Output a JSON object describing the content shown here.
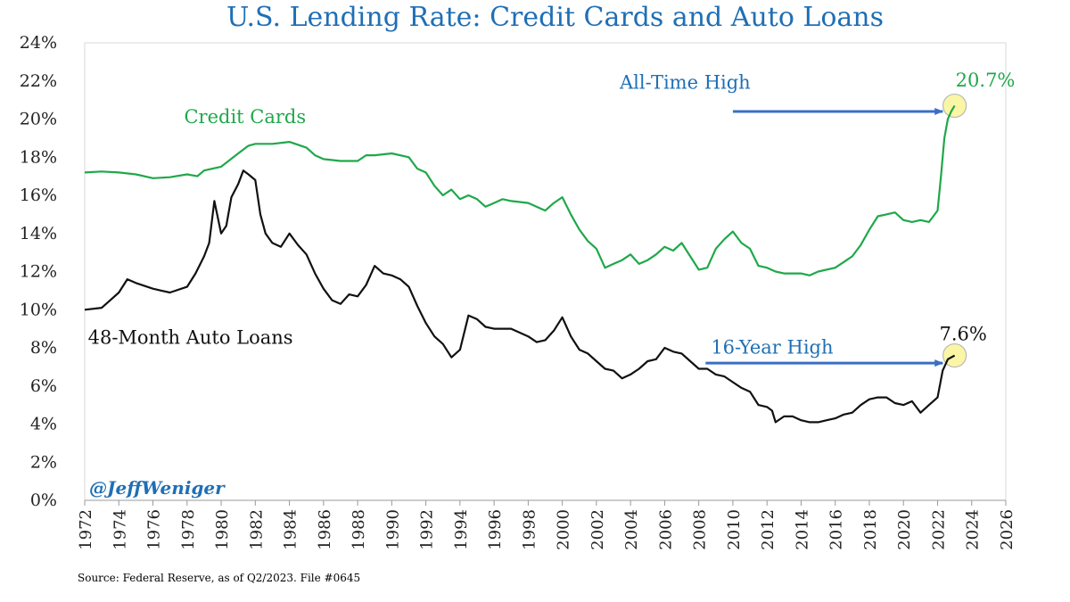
{
  "chart_data": {
    "type": "line",
    "title": "U.S. Lending Rate: Credit Cards and Auto Loans",
    "xlim": [
      1972,
      2026
    ],
    "ylim": [
      0,
      24
    ],
    "x_ticks": [
      1972,
      1974,
      1976,
      1978,
      1980,
      1982,
      1984,
      1986,
      1988,
      1990,
      1992,
      1994,
      1996,
      1998,
      2000,
      2002,
      2004,
      2006,
      2008,
      2010,
      2012,
      2014,
      2016,
      2018,
      2020,
      2022,
      2024,
      2026
    ],
    "y_ticks": [
      0,
      2,
      4,
      6,
      8,
      10,
      12,
      14,
      16,
      18,
      20,
      22,
      24
    ],
    "y_tick_labels": [
      "0%",
      "2%",
      "4%",
      "6%",
      "8%",
      "10%",
      "12%",
      "14%",
      "16%",
      "18%",
      "20%",
      "22%",
      "24%"
    ],
    "grid": false,
    "series": [
      {
        "name": "Credit Cards",
        "color": "#1fa84a",
        "points": [
          [
            1972,
            17.2
          ],
          [
            1973,
            17.25
          ],
          [
            1974,
            17.2
          ],
          [
            1975,
            17.1
          ],
          [
            1976,
            16.9
          ],
          [
            1977,
            16.95
          ],
          [
            1978,
            17.1
          ],
          [
            1978.6,
            17.0
          ],
          [
            1979,
            17.3
          ],
          [
            1980,
            17.5
          ],
          [
            1981,
            18.2
          ],
          [
            1981.6,
            18.6
          ],
          [
            1982,
            18.7
          ],
          [
            1983,
            18.7
          ],
          [
            1984,
            18.8
          ],
          [
            1985,
            18.5
          ],
          [
            1985.5,
            18.1
          ],
          [
            1986,
            17.9
          ],
          [
            1987,
            17.8
          ],
          [
            1988,
            17.8
          ],
          [
            1988.5,
            18.1
          ],
          [
            1989,
            18.1
          ],
          [
            1990,
            18.2
          ],
          [
            1991,
            18.0
          ],
          [
            1991.5,
            17.4
          ],
          [
            1992,
            17.2
          ],
          [
            1992.5,
            16.5
          ],
          [
            1993,
            16.0
          ],
          [
            1993.5,
            16.3
          ],
          [
            1994,
            15.8
          ],
          [
            1994.5,
            16.0
          ],
          [
            1995,
            15.8
          ],
          [
            1995.5,
            15.4
          ],
          [
            1996,
            15.6
          ],
          [
            1996.5,
            15.8
          ],
          [
            1997,
            15.7
          ],
          [
            1998,
            15.6
          ],
          [
            1999,
            15.2
          ],
          [
            1999.5,
            15.6
          ],
          [
            2000,
            15.9
          ],
          [
            2000.5,
            15.0
          ],
          [
            2001,
            14.2
          ],
          [
            2001.5,
            13.6
          ],
          [
            2002,
            13.2
          ],
          [
            2002.5,
            12.2
          ],
          [
            2003,
            12.4
          ],
          [
            2003.5,
            12.6
          ],
          [
            2004,
            12.9
          ],
          [
            2004.5,
            12.4
          ],
          [
            2005,
            12.6
          ],
          [
            2005.5,
            12.9
          ],
          [
            2006,
            13.3
          ],
          [
            2006.5,
            13.1
          ],
          [
            2007,
            13.5
          ],
          [
            2007.5,
            12.8
          ],
          [
            2008,
            12.1
          ],
          [
            2008.5,
            12.2
          ],
          [
            2009,
            13.2
          ],
          [
            2009.5,
            13.7
          ],
          [
            2010,
            14.1
          ],
          [
            2010.5,
            13.5
          ],
          [
            2011,
            13.2
          ],
          [
            2011.5,
            12.3
          ],
          [
            2012,
            12.2
          ],
          [
            2012.5,
            12.0
          ],
          [
            2013,
            11.9
          ],
          [
            2014,
            11.9
          ],
          [
            2014.5,
            11.8
          ],
          [
            2015,
            12.0
          ],
          [
            2016,
            12.2
          ],
          [
            2016.5,
            12.5
          ],
          [
            2017,
            12.8
          ],
          [
            2017.5,
            13.4
          ],
          [
            2018,
            14.2
          ],
          [
            2018.5,
            14.9
          ],
          [
            2019,
            15.0
          ],
          [
            2019.5,
            15.1
          ],
          [
            2020,
            14.7
          ],
          [
            2020.5,
            14.6
          ],
          [
            2021,
            14.7
          ],
          [
            2021.5,
            14.6
          ],
          [
            2022,
            15.2
          ],
          [
            2022.2,
            17.0
          ],
          [
            2022.4,
            19.0
          ],
          [
            2022.6,
            20.0
          ],
          [
            2022.8,
            20.4
          ],
          [
            2023,
            20.7
          ]
        ]
      },
      {
        "name": "48-Month Auto Loans",
        "color": "#111111",
        "points": [
          [
            1972,
            10.0
          ],
          [
            1973,
            10.1
          ],
          [
            1973.5,
            10.5
          ],
          [
            1974,
            10.9
          ],
          [
            1974.5,
            11.6
          ],
          [
            1975,
            11.4
          ],
          [
            1976,
            11.1
          ],
          [
            1976.5,
            11.0
          ],
          [
            1977,
            10.9
          ],
          [
            1978,
            11.2
          ],
          [
            1978.5,
            11.9
          ],
          [
            1979,
            12.8
          ],
          [
            1979.3,
            13.5
          ],
          [
            1979.6,
            15.7
          ],
          [
            1980,
            14.0
          ],
          [
            1980.3,
            14.4
          ],
          [
            1980.6,
            15.9
          ],
          [
            1981,
            16.6
          ],
          [
            1981.3,
            17.3
          ],
          [
            1981.6,
            17.1
          ],
          [
            1982,
            16.8
          ],
          [
            1982.3,
            15.0
          ],
          [
            1982.6,
            14.0
          ],
          [
            1983,
            13.5
          ],
          [
            1983.5,
            13.3
          ],
          [
            1984,
            14.0
          ],
          [
            1984.5,
            13.4
          ],
          [
            1985,
            12.9
          ],
          [
            1985.5,
            11.9
          ],
          [
            1986,
            11.1
          ],
          [
            1986.5,
            10.5
          ],
          [
            1987,
            10.3
          ],
          [
            1987.5,
            10.8
          ],
          [
            1988,
            10.7
          ],
          [
            1988.5,
            11.3
          ],
          [
            1989,
            12.3
          ],
          [
            1989.5,
            11.9
          ],
          [
            1990,
            11.8
          ],
          [
            1990.5,
            11.6
          ],
          [
            1991,
            11.2
          ],
          [
            1991.5,
            10.2
          ],
          [
            1992,
            9.3
          ],
          [
            1992.5,
            8.6
          ],
          [
            1993,
            8.2
          ],
          [
            1993.5,
            7.5
          ],
          [
            1994,
            7.9
          ],
          [
            1994.5,
            9.7
          ],
          [
            1995,
            9.5
          ],
          [
            1995.5,
            9.1
          ],
          [
            1996,
            9.0
          ],
          [
            1997,
            9.0
          ],
          [
            1998,
            8.6
          ],
          [
            1998.5,
            8.3
          ],
          [
            1999,
            8.4
          ],
          [
            1999.5,
            8.9
          ],
          [
            2000,
            9.6
          ],
          [
            2000.5,
            8.6
          ],
          [
            2001,
            7.9
          ],
          [
            2001.5,
            7.7
          ],
          [
            2002,
            7.3
          ],
          [
            2002.5,
            6.9
          ],
          [
            2003,
            6.8
          ],
          [
            2003.5,
            6.4
          ],
          [
            2004,
            6.6
          ],
          [
            2004.5,
            6.9
          ],
          [
            2005,
            7.3
          ],
          [
            2005.5,
            7.4
          ],
          [
            2006,
            8.0
          ],
          [
            2006.5,
            7.8
          ],
          [
            2007,
            7.7
          ],
          [
            2007.5,
            7.3
          ],
          [
            2008,
            6.9
          ],
          [
            2008.5,
            6.9
          ],
          [
            2009,
            6.6
          ],
          [
            2009.5,
            6.5
          ],
          [
            2010,
            6.2
          ],
          [
            2010.5,
            5.9
          ],
          [
            2011,
            5.7
          ],
          [
            2011.5,
            5.0
          ],
          [
            2012,
            4.9
          ],
          [
            2012.3,
            4.7
          ],
          [
            2012.5,
            4.1
          ],
          [
            2013,
            4.4
          ],
          [
            2013.5,
            4.4
          ],
          [
            2014,
            4.2
          ],
          [
            2014.5,
            4.1
          ],
          [
            2015,
            4.1
          ],
          [
            2015.5,
            4.2
          ],
          [
            2016,
            4.3
          ],
          [
            2016.5,
            4.5
          ],
          [
            2017,
            4.6
          ],
          [
            2017.5,
            5.0
          ],
          [
            2018,
            5.3
          ],
          [
            2018.5,
            5.4
          ],
          [
            2019,
            5.4
          ],
          [
            2019.5,
            5.1
          ],
          [
            2020,
            5.0
          ],
          [
            2020.5,
            5.2
          ],
          [
            2021,
            4.6
          ],
          [
            2021.5,
            5.0
          ],
          [
            2022,
            5.4
          ],
          [
            2022.3,
            6.8
          ],
          [
            2022.6,
            7.4
          ],
          [
            2023,
            7.6
          ]
        ]
      }
    ],
    "annotations": [
      {
        "text": "Credit Cards",
        "color": "#1fa84a",
        "x": 1981.4,
        "y": 19.8
      },
      {
        "text": "48-Month Auto Loans",
        "color": "#111111",
        "x": 1978.2,
        "y": 8.2
      },
      {
        "text": "All-Time High",
        "color": "#1f6fb5",
        "x": 2007.2,
        "y": 21.6,
        "arrow": {
          "from": [
            2010.0,
            20.4
          ],
          "to": [
            2022.3,
            20.4
          ]
        }
      },
      {
        "text": "20.7%",
        "color": "#1fa84a",
        "x": 2024.8,
        "y": 21.7,
        "circle": [
          2023,
          20.7
        ]
      },
      {
        "text": "16-Year High",
        "color": "#1f6fb5",
        "x": 2012.3,
        "y": 7.7,
        "arrow": {
          "from": [
            2008.4,
            7.2
          ],
          "to": [
            2022.3,
            7.2
          ]
        }
      },
      {
        "text": "7.6%",
        "color": "#111111",
        "x": 2023.5,
        "y": 8.4,
        "circle": [
          2023,
          7.6
        ]
      }
    ],
    "handle": "@JeffWeniger",
    "source": "Source: Federal Reserve, as of Q2/2023. File #0645"
  }
}
